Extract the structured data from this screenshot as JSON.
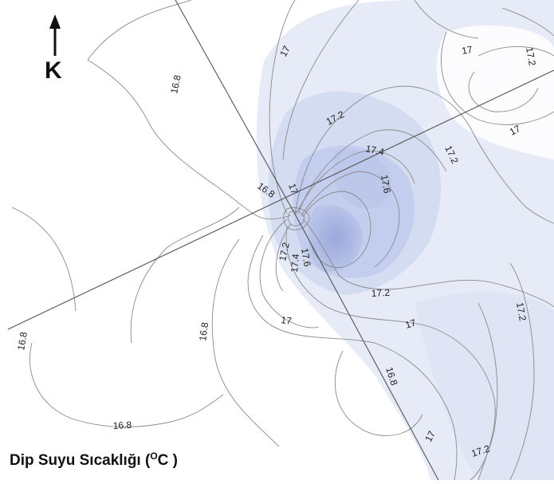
{
  "map": {
    "north_label": "K",
    "title_main": "Dip Suyu Sıcaklığı (",
    "title_sup": "O",
    "title_end": "C )",
    "shade_color": "#b7c3e6",
    "contour_labels": [
      {
        "id": "l1",
        "text": "16.8"
      },
      {
        "id": "l2",
        "text": "17"
      },
      {
        "id": "l3",
        "text": "17.2"
      },
      {
        "id": "l4",
        "text": "17"
      },
      {
        "id": "l5",
        "text": "17.2"
      },
      {
        "id": "l6",
        "text": "17"
      },
      {
        "id": "l7",
        "text": "17.4"
      },
      {
        "id": "l8",
        "text": "17.2"
      },
      {
        "id": "l9",
        "text": "17.6"
      },
      {
        "id": "l10",
        "text": "16.8"
      },
      {
        "id": "l11",
        "text": "17"
      },
      {
        "id": "l12",
        "text": "17.2"
      },
      {
        "id": "l13",
        "text": "17.4"
      },
      {
        "id": "l14",
        "text": "17.6"
      },
      {
        "id": "l15",
        "text": "17.2"
      },
      {
        "id": "l16",
        "text": "17.2"
      },
      {
        "id": "l17",
        "text": "17"
      },
      {
        "id": "l18",
        "text": "17"
      },
      {
        "id": "l19",
        "text": "16.8"
      },
      {
        "id": "l20",
        "text": "16.8"
      },
      {
        "id": "l21",
        "text": "16.8"
      },
      {
        "id": "l22",
        "text": "16.8"
      },
      {
        "id": "l23",
        "text": "17"
      },
      {
        "id": "l24",
        "text": "17.2"
      }
    ]
  }
}
